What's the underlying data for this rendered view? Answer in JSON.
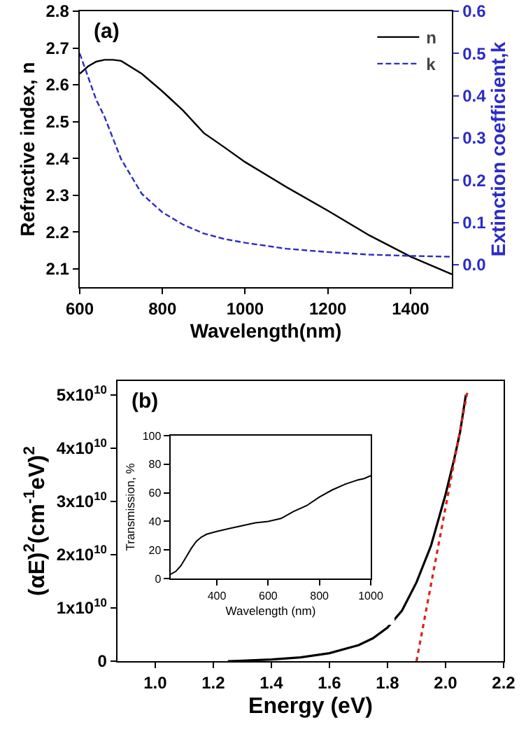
{
  "chart_data": [
    {
      "type": "line",
      "annotations": [
        "(a)"
      ],
      "xlabel": "Wavelength(nm)",
      "ylabel": "Refractive index, n",
      "y2label": "Extinction coefficient,k",
      "legend": "top right",
      "grid": false,
      "x": [
        600,
        620,
        640,
        660,
        680,
        700,
        750,
        800,
        850,
        900,
        950,
        1000,
        1100,
        1200,
        1300,
        1400,
        1500
      ],
      "xlim": [
        600,
        1500
      ],
      "xticks": [
        600,
        800,
        1000,
        1200,
        1400
      ],
      "ylim": [
        2.05,
        2.8
      ],
      "yticks": [
        2.1,
        2.2,
        2.3,
        2.4,
        2.5,
        2.6,
        2.7,
        2.8
      ],
      "y2lim": [
        -0.053,
        0.6
      ],
      "y2ticks": [
        {
          "value": 0,
          "label": "0.0"
        },
        0.1,
        0.2,
        0.3,
        0.4,
        0.5,
        0.6
      ],
      "series": [
        {
          "name": "n",
          "color": "#000000",
          "line_style": "solid",
          "values": [
            2.63,
            2.65,
            2.663,
            2.668,
            2.668,
            2.665,
            2.63,
            2.582,
            2.53,
            2.469,
            2.43,
            2.39,
            2.322,
            2.258,
            2.191,
            2.133,
            2.085
          ]
        },
        {
          "name": "k",
          "color": "#2b2bc8",
          "line_style": "dashed",
          "axis": "y2",
          "values": [
            0.5,
            0.445,
            0.39,
            0.35,
            0.3,
            0.25,
            0.168,
            0.124,
            0.095,
            0.074,
            0.061,
            0.052,
            0.038,
            0.03,
            0.024,
            0.021,
            0.019
          ]
        }
      ]
    },
    {
      "type": "line",
      "annotations": [
        "(b)"
      ],
      "xlabel": "Energy (eV)",
      "ylabel": "(αE)$^{2}$(cm$^{-1}$eV)$^{2}$",
      "grid": false,
      "xlim": [
        0.87,
        2.2
      ],
      "xticks": [
        {
          "value": 1,
          "label": "1.0"
        },
        1.2,
        1.4,
        1.6,
        1.8,
        {
          "value": 2,
          "label": "2.0"
        },
        2.2
      ],
      "ylim": [
        0,
        52600000000
      ],
      "yticks": [
        0,
        {
          "value": 10000000000,
          "label": "1x10$^{10}$"
        },
        {
          "value": 20000000000,
          "label": "2x10$^{10}$"
        },
        {
          "value": 30000000000,
          "label": "3x10$^{10}$"
        },
        {
          "value": 40000000000,
          "label": "4x10$^{10}$"
        },
        {
          "value": 50000000000,
          "label": "5x10$^{10}$"
        }
      ],
      "series": [
        {
          "color": "#000000",
          "line_style": "solid",
          "x": [
            1.25,
            1.3,
            1.4,
            1.5,
            1.6,
            1.7,
            1.75,
            1.8,
            1.85,
            1.9,
            1.95,
            2.0,
            2.03,
            2.05,
            2.07
          ],
          "values": [
            0,
            100000000,
            300000000,
            700000000,
            1500000000,
            3000000000,
            4300000000,
            6300000000,
            9500000000,
            14800000000,
            21700000000,
            31300000000,
            38000000000,
            43000000000,
            50000000000
          ]
        },
        {
          "type": "line",
          "color": "#e0201a",
          "line_style": "dotted",
          "x": [
            1.9,
            2.075
          ],
          "values": [
            0,
            50500000000
          ]
        }
      ]
    },
    {
      "type": "line",
      "xlabel": "Wavelength (nm)",
      "ylabel": "Transmission, %",
      "grid": false,
      "x": [
        220,
        240,
        260,
        280,
        300,
        320,
        340,
        360,
        380,
        400,
        450,
        500,
        550,
        600,
        650,
        700,
        750,
        800,
        850,
        900,
        950,
        975,
        1000
      ],
      "xlim": [
        220,
        1000
      ],
      "xticks": [
        400,
        600,
        800,
        1000
      ],
      "ylim": [
        0,
        100
      ],
      "yticks": [
        0,
        20,
        40,
        60,
        80,
        100
      ],
      "series": [
        {
          "color": "#000000",
          "line_style": "solid",
          "values": [
            3,
            5,
            9,
            15,
            21,
            26,
            29,
            31,
            32,
            33,
            35,
            37,
            39,
            40,
            42,
            47,
            51,
            57,
            62,
            66,
            69,
            70,
            72
          ]
        }
      ]
    }
  ]
}
